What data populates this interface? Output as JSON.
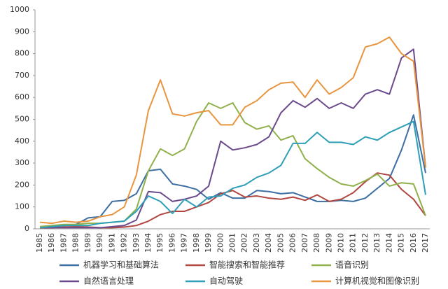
{
  "chart_data": {
    "type": "line",
    "x": [
      1985,
      1986,
      1987,
      1988,
      1989,
      1990,
      1991,
      1992,
      1993,
      1994,
      1995,
      1996,
      1997,
      1998,
      1999,
      2000,
      2001,
      2002,
      2003,
      2004,
      2005,
      2006,
      2007,
      2008,
      2009,
      2010,
      2011,
      2012,
      2013,
      2014,
      2015,
      2016,
      2017
    ],
    "xlim": [
      1985,
      2017
    ],
    "ylim": [
      0,
      1000
    ],
    "yticks": [
      0,
      100,
      200,
      300,
      400,
      500,
      600,
      700,
      800,
      900,
      1000
    ],
    "grid": false,
    "legend": "bottom",
    "series": [
      {
        "name": "机器学习和基础算法",
        "color": "#3d6fa3",
        "values": [
          10,
          10,
          15,
          20,
          50,
          55,
          125,
          130,
          160,
          265,
          272,
          205,
          195,
          180,
          135,
          165,
          140,
          140,
          175,
          170,
          160,
          165,
          145,
          125,
          125,
          130,
          125,
          140,
          185,
          230,
          360,
          520,
          255
        ]
      },
      {
        "name": "智能搜索和智能推荐",
        "color": "#b0463f",
        "values": [
          5,
          5,
          8,
          10,
          8,
          5,
          5,
          8,
          15,
          35,
          65,
          80,
          80,
          100,
          120,
          160,
          175,
          145,
          150,
          140,
          135,
          145,
          130,
          155,
          125,
          135,
          165,
          215,
          255,
          245,
          180,
          135,
          60
        ]
      },
      {
        "name": "语音识别",
        "color": "#8fb04a",
        "values": [
          10,
          15,
          20,
          20,
          25,
          25,
          30,
          35,
          90,
          265,
          365,
          335,
          365,
          490,
          575,
          550,
          575,
          485,
          455,
          470,
          405,
          425,
          320,
          275,
          235,
          205,
          195,
          220,
          250,
          195,
          210,
          205,
          60
        ]
      },
      {
        "name": "自然语言处理",
        "color": "#6a4a8c",
        "values": [
          5,
          5,
          5,
          5,
          5,
          5,
          10,
          15,
          40,
          170,
          165,
          125,
          135,
          150,
          195,
          400,
          360,
          370,
          385,
          420,
          530,
          585,
          555,
          595,
          550,
          575,
          550,
          615,
          635,
          615,
          780,
          820,
          280
        ]
      },
      {
        "name": "自动驾驶",
        "color": "#2e9fb7",
        "values": [
          5,
          10,
          15,
          15,
          15,
          25,
          30,
          35,
          80,
          150,
          125,
          70,
          135,
          100,
          145,
          150,
          185,
          200,
          235,
          255,
          290,
          390,
          390,
          440,
          395,
          395,
          385,
          420,
          405,
          440,
          465,
          490,
          155
        ]
      },
      {
        "name": "计算机视觉和图像识别",
        "color": "#e8953f",
        "values": [
          30,
          25,
          35,
          30,
          35,
          55,
          65,
          100,
          245,
          540,
          680,
          525,
          515,
          530,
          540,
          475,
          475,
          555,
          585,
          635,
          665,
          670,
          600,
          680,
          615,
          645,
          690,
          830,
          845,
          875,
          800,
          765,
          280
        ]
      }
    ]
  }
}
